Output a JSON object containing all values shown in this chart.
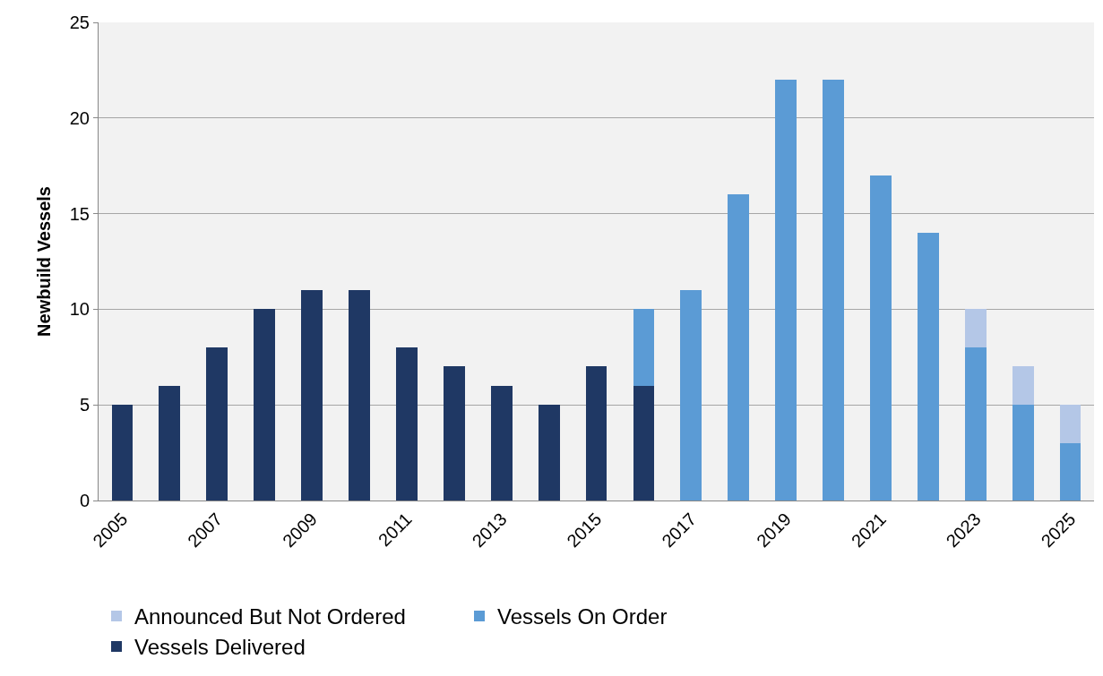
{
  "chart_data": {
    "type": "bar",
    "stacked": true,
    "ylabel": "Newbuild Vessels",
    "categories": [
      "2005",
      null,
      "2007",
      null,
      "2009",
      null,
      "2011",
      null,
      "2013",
      null,
      "2015",
      null,
      "2017",
      null,
      "2019",
      null,
      "2021",
      null,
      "2023",
      null,
      "2025"
    ],
    "series": [
      {
        "name": "Vessels Delivered",
        "color": "#1f3864",
        "values": [
          5,
          6,
          8,
          10,
          11,
          11,
          8,
          7,
          6,
          5,
          7,
          6,
          null,
          null,
          null,
          null,
          null,
          null,
          null,
          null,
          null
        ]
      },
      {
        "name": "Vessels On Order",
        "color": "#5b9bd5",
        "values": [
          null,
          null,
          null,
          null,
          null,
          null,
          null,
          null,
          null,
          null,
          null,
          4,
          11,
          16,
          22,
          22,
          17,
          14,
          8,
          5,
          3
        ]
      },
      {
        "name": "Announced But Not Ordered",
        "color": "#b4c7e7",
        "values": [
          null,
          null,
          null,
          null,
          null,
          null,
          null,
          null,
          null,
          null,
          null,
          null,
          null,
          null,
          null,
          null,
          null,
          null,
          2,
          2,
          2
        ]
      }
    ],
    "ylim": [
      0,
      25
    ],
    "yticks": [
      0,
      5,
      10,
      15,
      20,
      25
    ],
    "grid": "y",
    "legend": "bottom"
  }
}
